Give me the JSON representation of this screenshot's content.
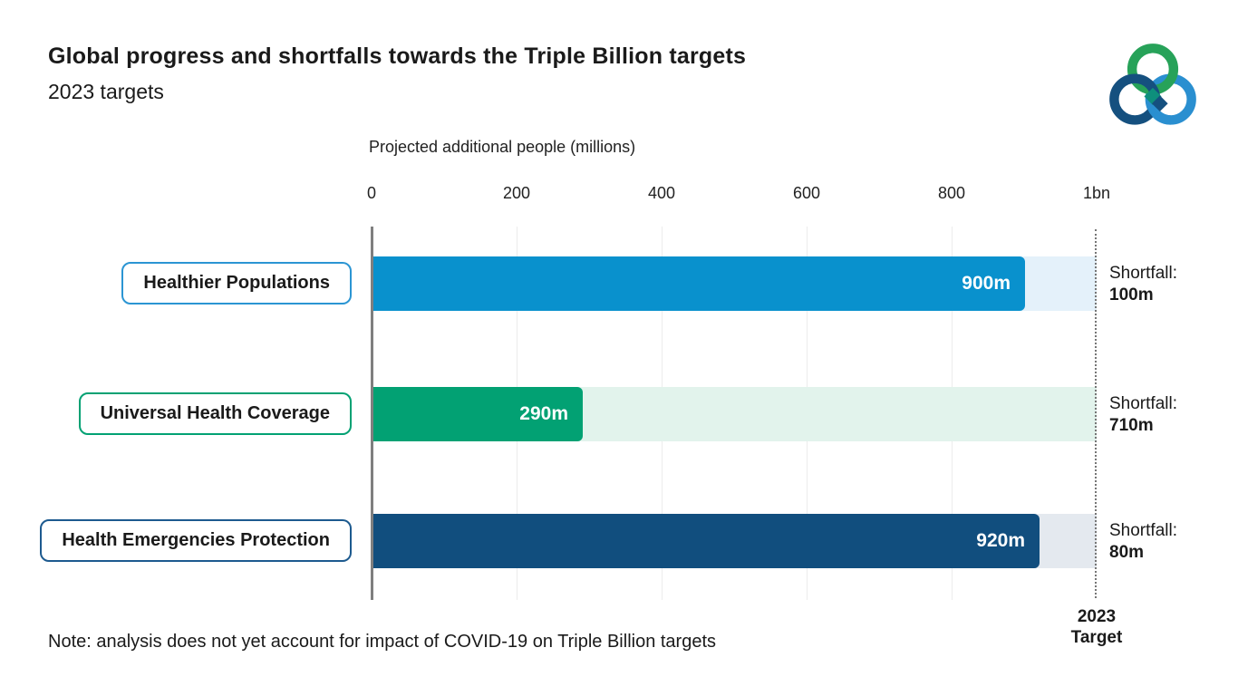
{
  "header": {
    "title": "Global progress and shortfalls towards the Triple Billion targets",
    "subtitle": "2023 targets"
  },
  "axis": {
    "title": "Projected additional people (millions)",
    "ticks": [
      "0",
      "200",
      "400",
      "600",
      "800",
      "1bn"
    ]
  },
  "rows": [
    {
      "label": "Healthier Populations",
      "value": 900,
      "value_label": "900m",
      "shortfall_label": "Shortfall:",
      "shortfall_value": "100m",
      "bar_color": "#0991cd",
      "track_color": "#e4f1fa",
      "box_border_color": "#2b95d3"
    },
    {
      "label": "Universal Health Coverage",
      "value": 290,
      "value_label": "290m",
      "shortfall_label": "Shortfall:",
      "shortfall_value": "710m",
      "bar_color": "#02a173",
      "track_color": "#e2f3ec",
      "box_border_color": "#02a173"
    },
    {
      "label": "Health Emergencies Protection",
      "value": 920,
      "value_label": "920m",
      "shortfall_label": "Shortfall:",
      "shortfall_value": "80m",
      "bar_color": "#114e7e",
      "track_color": "#e4e9ef",
      "box_border_color": "#1d5a8f"
    }
  ],
  "target": {
    "label_line1": "2023",
    "label_line2": "Target"
  },
  "note": "Note: analysis does not yet account for impact of COVID-19 on Triple Billion targets",
  "logo": {
    "green": "#27a259",
    "navy": "#15507f",
    "blue": "#2a8fd0",
    "teal": "#0e8f7c"
  },
  "chart_data": {
    "type": "bar",
    "orientation": "horizontal",
    "title": "Global progress and shortfalls towards the Triple Billion targets",
    "subtitle": "2023 targets",
    "xlabel": "Projected additional people (millions)",
    "categories": [
      "Healthier Populations",
      "Universal Health Coverage",
      "Health Emergencies Protection"
    ],
    "series": [
      {
        "name": "Projected additional people",
        "values": [
          900,
          290,
          920
        ]
      },
      {
        "name": "Shortfall",
        "values": [
          100,
          710,
          80
        ]
      }
    ],
    "xlim": [
      0,
      1000
    ],
    "xticks": [
      0,
      200,
      400,
      600,
      800,
      1000
    ],
    "xtick_labels": [
      "0",
      "200",
      "400",
      "600",
      "800",
      "1bn"
    ],
    "target_value": 1000,
    "target_label": "2023 Target",
    "grid": "vertical light gridlines at ticks",
    "legend_position": "none",
    "annotations": [
      "Shortfall: 100m",
      "Shortfall: 710m",
      "Shortfall: 80m"
    ],
    "note": "Note: analysis does not yet account for impact of COVID-19 on Triple Billion targets"
  }
}
